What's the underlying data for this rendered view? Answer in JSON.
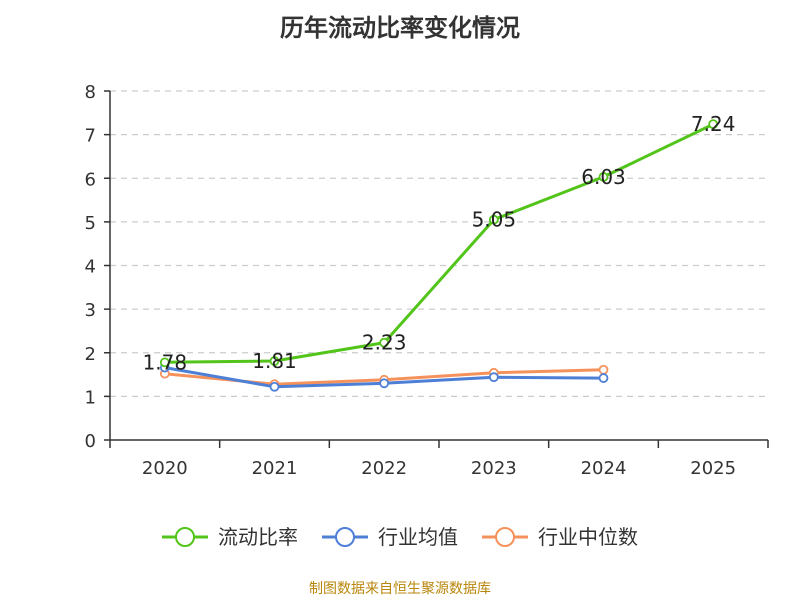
{
  "chart_data": {
    "type": "line",
    "title": "历年流动比率变化情况",
    "categories": [
      "2020",
      "2021",
      "2022",
      "2023",
      "2024",
      "2025"
    ],
    "ylim": [
      0,
      8
    ],
    "yticks": [
      0,
      1,
      2,
      3,
      4,
      5,
      6,
      7,
      8
    ],
    "grid": true,
    "legend_position": "bottom",
    "series": [
      {
        "name": "流动比率",
        "color": "#52c41a",
        "values": [
          1.78,
          1.81,
          2.23,
          5.05,
          6.03,
          7.24
        ],
        "labels": [
          "1.78",
          "1.81",
          "2.23",
          "5.05",
          "6.03",
          "7.24"
        ]
      },
      {
        "name": "行业均值",
        "color": "#4e7fd6",
        "values": [
          1.66,
          1.22,
          1.3,
          1.44,
          1.42,
          null
        ]
      },
      {
        "name": "行业中位数",
        "color": "#f5925c",
        "values": [
          1.52,
          1.28,
          1.38,
          1.54,
          1.61,
          null
        ]
      }
    ]
  },
  "footer": "制图数据来自恒生聚源数据库"
}
